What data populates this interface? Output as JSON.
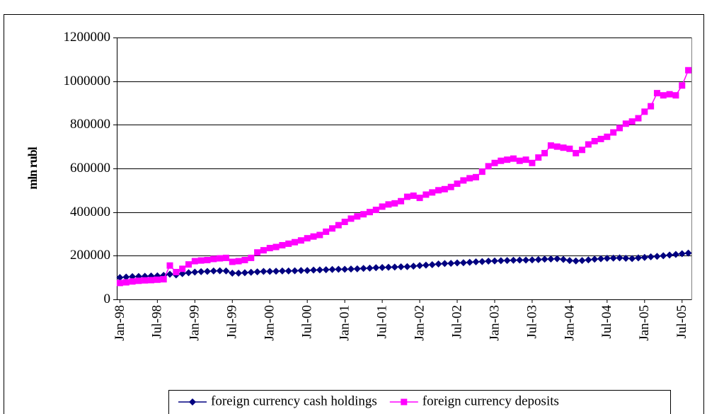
{
  "chart_data": {
    "type": "line",
    "ylabel": "mln rubl",
    "categories": [
      "Jan-98",
      null,
      null,
      null,
      null,
      null,
      "Jul-98",
      null,
      null,
      null,
      null,
      null,
      "Jan-99",
      null,
      null,
      null,
      null,
      null,
      "Jul-99",
      null,
      null,
      null,
      null,
      null,
      "Jan-00",
      null,
      null,
      null,
      null,
      null,
      "Jul-00",
      null,
      null,
      null,
      null,
      null,
      "Jan-01",
      null,
      null,
      null,
      null,
      null,
      "Jul-01",
      null,
      null,
      null,
      null,
      null,
      "Jan-02",
      null,
      null,
      null,
      null,
      null,
      "Jul-02",
      null,
      null,
      null,
      null,
      null,
      "Jan-03",
      null,
      null,
      null,
      null,
      null,
      "Jul-03",
      null,
      null,
      null,
      null,
      null,
      "Jan-04",
      null,
      null,
      null,
      null,
      null,
      "Jul-04",
      null,
      null,
      null,
      null,
      null,
      "Jan-05",
      null,
      null,
      null,
      null,
      null,
      "Jul-05",
      null
    ],
    "series": [
      {
        "name": "foreign currency cash holdings",
        "color": "#000080",
        "marker": "diamond",
        "values": [
          100000,
          102000,
          104000,
          105000,
          106000,
          107000,
          108000,
          110000,
          115000,
          112000,
          118000,
          122000,
          125000,
          127000,
          128000,
          130000,
          131000,
          130000,
          120000,
          120000,
          122000,
          124000,
          126000,
          128000,
          128000,
          129000,
          130000,
          130000,
          131000,
          132000,
          132000,
          134000,
          135000,
          136000,
          137000,
          138000,
          138000,
          139000,
          140000,
          142000,
          143000,
          145000,
          146000,
          147000,
          148000,
          149000,
          150000,
          152000,
          155000,
          157000,
          159000,
          162000,
          164000,
          165000,
          167000,
          168000,
          170000,
          172000,
          173000,
          175000,
          176000,
          177000,
          178000,
          179000,
          180000,
          180000,
          181000,
          182000,
          184000,
          185000,
          186000,
          183000,
          178000,
          176000,
          178000,
          181000,
          184000,
          186000,
          188000,
          189000,
          190000,
          188000,
          187000,
          190000,
          192000,
          195000,
          197000,
          200000,
          203000,
          206000,
          209000,
          212000
        ]
      },
      {
        "name": "foreign currency deposits",
        "color": "#ff00ff",
        "marker": "square",
        "values": [
          75000,
          78000,
          82000,
          85000,
          87000,
          88000,
          90000,
          92000,
          155000,
          125000,
          140000,
          160000,
          175000,
          178000,
          180000,
          185000,
          188000,
          190000,
          172000,
          175000,
          180000,
          190000,
          215000,
          225000,
          235000,
          240000,
          248000,
          255000,
          262000,
          270000,
          280000,
          288000,
          295000,
          310000,
          325000,
          340000,
          355000,
          370000,
          380000,
          390000,
          400000,
          410000,
          425000,
          435000,
          440000,
          450000,
          470000,
          475000,
          465000,
          480000,
          490000,
          500000,
          505000,
          515000,
          530000,
          545000,
          555000,
          560000,
          585000,
          610000,
          625000,
          635000,
          640000,
          645000,
          635000,
          640000,
          625000,
          650000,
          670000,
          705000,
          700000,
          695000,
          690000,
          670000,
          685000,
          710000,
          725000,
          735000,
          745000,
          765000,
          785000,
          805000,
          815000,
          830000,
          860000,
          885000,
          945000,
          935000,
          940000,
          935000,
          980000,
          1050000
        ]
      }
    ],
    "ylim": [
      0,
      1200000
    ],
    "yticks": [
      0,
      200000,
      400000,
      600000,
      800000,
      1000000,
      1200000
    ],
    "grid": true,
    "legend": "bottom"
  }
}
